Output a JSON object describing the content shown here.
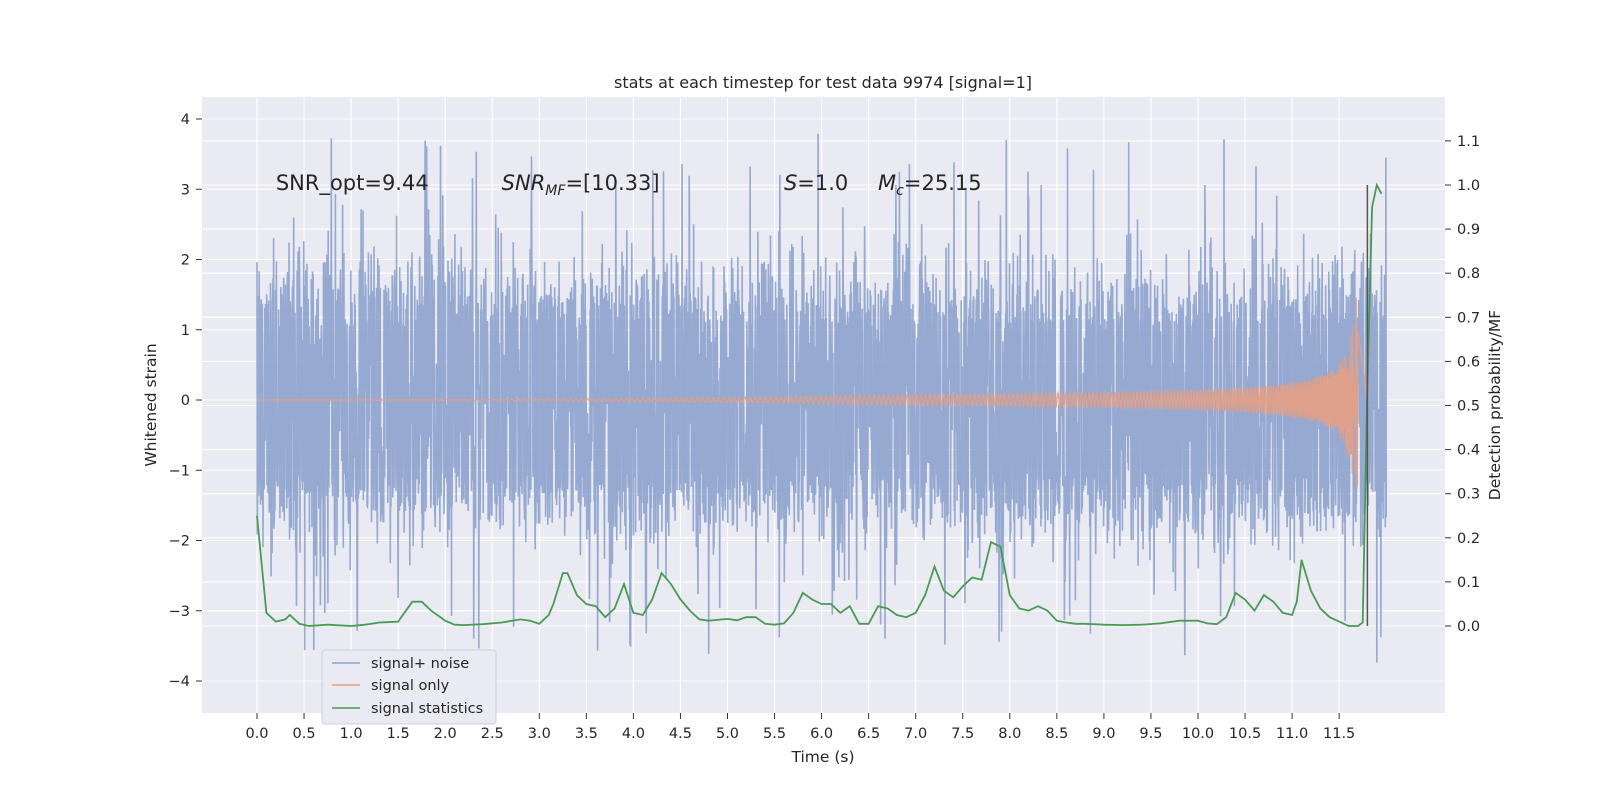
{
  "chart_data": {
    "type": "line",
    "title": "stats at each timestep for test data 9974 [signal=1]",
    "xlabel": "Time (s)",
    "ylabel": "Whitened strain",
    "ylabel_right": "Detection probability/MF",
    "xlim": [
      -0.58,
      12.6
    ],
    "ylim": [
      -4.4,
      4.3
    ],
    "ylim_right": [
      -0.2,
      1.2
    ],
    "x_ticks": [
      "0.0",
      "0.5",
      "1.0",
      "1.5",
      "2.0",
      "2.5",
      "3.0",
      "3.5",
      "4.0",
      "4.5",
      "5.0",
      "5.5",
      "6.0",
      "6.5",
      "7.0",
      "7.5",
      "8.0",
      "8.5",
      "9.0",
      "9.5",
      "10.0",
      "10.5",
      "11.0",
      "11.5"
    ],
    "y_ticks_left": [
      "4",
      "3",
      "2",
      "1",
      "0",
      "−1",
      "−2",
      "−3",
      "−4"
    ],
    "y_ticks_right": [
      "1.1",
      "1.0",
      "0.9",
      "0.8",
      "0.7",
      "0.6",
      "0.5",
      "0.4",
      "0.3",
      "0.2",
      "0.1",
      "0.0"
    ],
    "grid": true,
    "legend_position": "lower-left",
    "annotations": [
      {
        "prefix": "SNR_opt=9.44",
        "sub": "",
        "suffix": "",
        "x": 0.2,
        "y": 3.1
      },
      {
        "prefix": "SNR",
        "sub": "MF",
        "suffix": "=[10.33]",
        "x": 2.6,
        "y": 3.1
      },
      {
        "prefix": "S",
        "sub": "",
        "suffix": "=1.0",
        "x": 5.6,
        "y": 3.1
      },
      {
        "prefix": "M",
        "sub": "c",
        "suffix": "=25.15",
        "x": 6.6,
        "y": 3.1
      }
    ],
    "vline": {
      "x": 11.8,
      "y_right": [
        0.0,
        1.0
      ]
    },
    "series": [
      {
        "name": "signal+ noise",
        "color": "#8da2cd",
        "description": "whitened noise with signal, amplitude ~1.3, extremes up to about 3.9 / -4.1",
        "t_start": 0.0,
        "t_end": 12.0
      },
      {
        "name": "signal only",
        "color": "#e59f83",
        "chirp_start": 7.0,
        "chirp_peak_time": 11.65,
        "peak_amplitude": 1.85,
        "end_time": 11.8
      },
      {
        "name": "signal statistics",
        "color": "#4a9a54",
        "axis": "right",
        "x": [
          0.0,
          0.1,
          0.2,
          0.3,
          0.35,
          0.45,
          0.55,
          0.75,
          1.0,
          1.15,
          1.3,
          1.5,
          1.6,
          1.65,
          1.75,
          1.85,
          2.0,
          2.1,
          2.2,
          2.4,
          2.6,
          2.8,
          2.9,
          3.0,
          3.1,
          3.15,
          3.25,
          3.3,
          3.4,
          3.5,
          3.6,
          3.7,
          3.8,
          3.9,
          4.0,
          4.1,
          4.2,
          4.3,
          4.4,
          4.5,
          4.6,
          4.7,
          4.8,
          5.0,
          5.1,
          5.2,
          5.3,
          5.4,
          5.5,
          5.6,
          5.7,
          5.8,
          5.9,
          6.0,
          6.1,
          6.2,
          6.3,
          6.4,
          6.5,
          6.6,
          6.7,
          6.8,
          6.9,
          7.0,
          7.1,
          7.2,
          7.3,
          7.4,
          7.5,
          7.6,
          7.7,
          7.8,
          7.9,
          8.0,
          8.1,
          8.2,
          8.3,
          8.4,
          8.5,
          8.6,
          8.7,
          8.8,
          9.0,
          9.2,
          9.4,
          9.6,
          9.8,
          10.0,
          10.1,
          10.2,
          10.3,
          10.4,
          10.5,
          10.6,
          10.7,
          10.8,
          10.9,
          11.0,
          11.05,
          11.1,
          11.2,
          11.3,
          11.4,
          11.5,
          11.6,
          11.7,
          11.75,
          11.8,
          11.85,
          11.9,
          11.95
        ],
        "y": [
          0.25,
          0.03,
          0.01,
          0.015,
          0.025,
          0.005,
          0.0,
          0.003,
          0.0,
          0.003,
          0.008,
          0.01,
          0.04,
          0.055,
          0.055,
          0.035,
          0.012,
          0.003,
          0.002,
          0.004,
          0.008,
          0.015,
          0.012,
          0.005,
          0.025,
          0.05,
          0.12,
          0.12,
          0.07,
          0.05,
          0.045,
          0.02,
          0.04,
          0.095,
          0.03,
          0.025,
          0.06,
          0.12,
          0.095,
          0.06,
          0.035,
          0.015,
          0.012,
          0.016,
          0.013,
          0.02,
          0.02,
          0.005,
          0.003,
          0.006,
          0.03,
          0.075,
          0.06,
          0.05,
          0.05,
          0.03,
          0.045,
          0.005,
          0.005,
          0.045,
          0.04,
          0.025,
          0.02,
          0.03,
          0.07,
          0.135,
          0.08,
          0.065,
          0.09,
          0.11,
          0.105,
          0.19,
          0.18,
          0.07,
          0.04,
          0.035,
          0.045,
          0.035,
          0.012,
          0.008,
          0.005,
          0.005,
          0.003,
          0.002,
          0.003,
          0.006,
          0.012,
          0.012,
          0.006,
          0.004,
          0.02,
          0.075,
          0.06,
          0.035,
          0.07,
          0.055,
          0.03,
          0.025,
          0.055,
          0.15,
          0.08,
          0.04,
          0.02,
          0.01,
          0.0,
          0.0,
          0.008,
          0.55,
          0.95,
          1.0,
          0.98
        ]
      }
    ]
  }
}
